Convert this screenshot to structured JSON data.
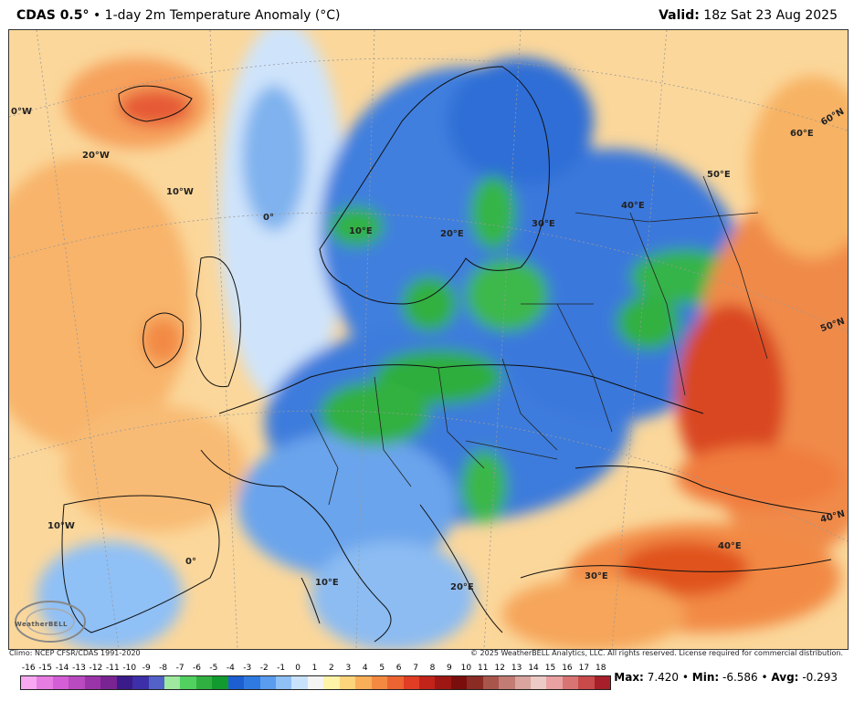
{
  "header": {
    "model": "CDAS 0.5°",
    "title": "1-day 2m Temperature Anomaly (°C)",
    "valid_label": "Valid:",
    "valid_time": "18z Sat 23 Aug 2025"
  },
  "map": {
    "grid_labels": [
      {
        "id": "0w-nw",
        "text": "0°W"
      },
      {
        "id": "20w",
        "text": "20°W"
      },
      {
        "id": "10w-n",
        "text": "10°W"
      },
      {
        "id": "0-n",
        "text": "0°"
      },
      {
        "id": "10e-n",
        "text": "10°E"
      },
      {
        "id": "20e-n",
        "text": "20°E"
      },
      {
        "id": "30e-n",
        "text": "30°E"
      },
      {
        "id": "40e-n",
        "text": "40°E"
      },
      {
        "id": "50e",
        "text": "50°E"
      },
      {
        "id": "60e",
        "text": "60°E"
      },
      {
        "id": "60n",
        "text": "60°N"
      },
      {
        "id": "50n",
        "text": "50°N"
      },
      {
        "id": "40n",
        "text": "40°N"
      },
      {
        "id": "10w-s",
        "text": "10°W"
      },
      {
        "id": "0-s",
        "text": "0°"
      },
      {
        "id": "10e-s",
        "text": "10°E"
      },
      {
        "id": "20e-s",
        "text": "20°E"
      },
      {
        "id": "30e-s",
        "text": "30°E"
      },
      {
        "id": "40e-s",
        "text": "40°E"
      }
    ],
    "logo": "WeatherBELL"
  },
  "footer": {
    "climo": "Climo: NCEP CFSR/CDAS 1991-2020",
    "copyright": "© 2025 WeatherBELL Analytics, LLC. All rights reserved. License required for commercial distribution."
  },
  "legend": {
    "labels": [
      "-16",
      "-15",
      "-14",
      "-13",
      "-12",
      "-11",
      "-10",
      "-9",
      "-8",
      "-7",
      "-6",
      "-5",
      "-4",
      "-3",
      "-2",
      "-1",
      "0",
      "1",
      "2",
      "3",
      "4",
      "5",
      "6",
      "7",
      "8",
      "9",
      "10",
      "11",
      "12",
      "13",
      "14",
      "15",
      "16",
      "17",
      "18"
    ],
    "colors": [
      "#f7a8f0",
      "#e77de3",
      "#d45ed6",
      "#b94ac0",
      "#9a34a8",
      "#7a2493",
      "#3b1a8a",
      "#3c2fa8",
      "#5262c8",
      "#9ee8a0",
      "#52d060",
      "#30b040",
      "#129a2e",
      "#1d5fd0",
      "#2f7ae0",
      "#5a9cee",
      "#8fc0f6",
      "#c9e2fb",
      "#f4f4f4",
      "#fff3a8",
      "#fcd47c",
      "#f9ae58",
      "#f48a42",
      "#ec6432",
      "#e03d24",
      "#c2241a",
      "#9e1712",
      "#7a0e0c",
      "#8a2c24",
      "#a8554c",
      "#c27c74",
      "#d9a59e",
      "#eccac5",
      "#e9a1a1",
      "#d97474",
      "#c94a4a",
      "#a61f2a"
    ]
  },
  "stats": {
    "max_label": "Max:",
    "max": "7.420",
    "min_label": "Min:",
    "min": "-6.586",
    "avg_label": "Avg:",
    "avg": "-0.293"
  }
}
